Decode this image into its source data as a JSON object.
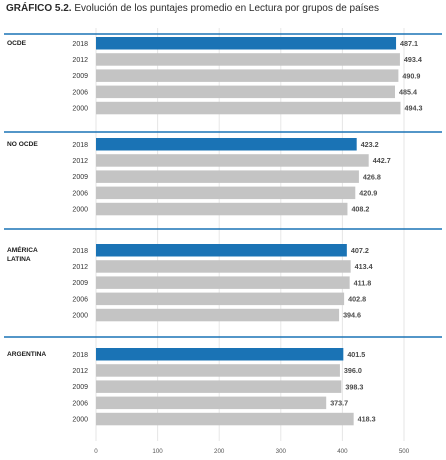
{
  "title": {
    "prefix": "GRÁFICO 5.2.",
    "text": "Evolución de los puntajes promedio en Lectura por grupos de países"
  },
  "colors": {
    "highlight": "#1a73b5",
    "bar": "#c4c4c4",
    "separator": "#1a73b5",
    "grid": "#e6e6e6"
  },
  "chart_data": {
    "type": "bar",
    "orientation": "horizontal",
    "xlim": [
      0,
      500
    ],
    "xticks": [
      "0",
      "100",
      "200",
      "300",
      "400",
      "500"
    ],
    "grid": true,
    "groups": [
      {
        "name": [
          "OCDE"
        ],
        "categories": [
          "2018",
          "2012",
          "2009",
          "2006",
          "2000"
        ],
        "values": [
          487.1,
          493.4,
          490.9,
          485.4,
          494.3
        ],
        "value_labels": [
          "487.1",
          "493.4",
          "490.9",
          "485.4",
          "494.3"
        ]
      },
      {
        "name": [
          "NO OCDE"
        ],
        "categories": [
          "2018",
          "2012",
          "2009",
          "2006",
          "2000"
        ],
        "values": [
          423.2,
          442.7,
          426.8,
          420.9,
          408.2
        ],
        "value_labels": [
          "423.2",
          "442.7",
          "426.8",
          "420.9",
          "408.2"
        ]
      },
      {
        "name": [
          "AMÉRICA",
          "LATINA"
        ],
        "categories": [
          "2018",
          "2012",
          "2009",
          "2006",
          "2000"
        ],
        "values": [
          407.2,
          413.4,
          411.8,
          402.8,
          394.6
        ],
        "value_labels": [
          "407.2",
          "413.4",
          "411.8",
          "402.8",
          "394.6"
        ]
      },
      {
        "name": [
          "ARGENTINA"
        ],
        "categories": [
          "2018",
          "2012",
          "2009",
          "2006",
          "2000"
        ],
        "values": [
          401.5,
          396.0,
          398.3,
          373.7,
          418.3
        ],
        "value_labels": [
          "401.5",
          "396.0",
          "398.3",
          "373.7",
          "418.3"
        ]
      }
    ]
  }
}
